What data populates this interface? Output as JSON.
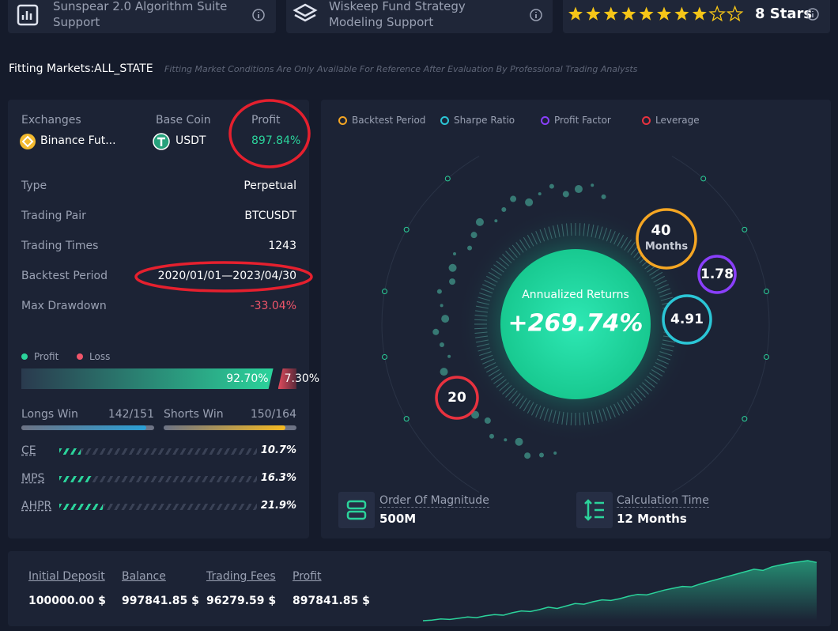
{
  "top_cards": [
    {
      "title": "Sunspear 2.0 Algorithm Suite Support"
    },
    {
      "title": "Wiskeep Fund Strategy Modeling Support"
    }
  ],
  "rating": {
    "stars": 8,
    "max_stars": 10,
    "label": "8 Stars"
  },
  "fitting_markets": {
    "label": "Fitting Markets:ALL_STATE",
    "note": "Fitting Market Conditions Are Only Available For Reference After Evaluation By Professional Trading Analysts"
  },
  "summary": {
    "exchanges": {
      "label": "Exchanges",
      "value": "Binance Fut..."
    },
    "base_coin": {
      "label": "Base Coin",
      "value": "USDT"
    },
    "profit": {
      "label": "Profit",
      "value": "897.84%"
    }
  },
  "details": [
    {
      "label": "Type",
      "value": "Perpetual"
    },
    {
      "label": "Trading Pair",
      "value": "BTCUSDT"
    },
    {
      "label": "Trading Times",
      "value": "1243"
    },
    {
      "label": "Backtest Period",
      "value": "2020/01/01—2023/04/30"
    },
    {
      "label": "Max Drawdown",
      "value": "-33.04%"
    }
  ],
  "win_loss": {
    "legend": [
      "Profit",
      "Loss"
    ],
    "profit": {
      "value": 92.7,
      "label": "92.70%"
    },
    "loss": {
      "value": 7.3,
      "label": "7.30%"
    }
  },
  "sides": [
    {
      "name": "Longs Win",
      "won": 142,
      "total": 151,
      "label": "142/151"
    },
    {
      "name": "Shorts Win",
      "won": 150,
      "total": 164,
      "label": "150/164"
    }
  ],
  "metrics": [
    {
      "name": "CE",
      "value": 10.7,
      "label": "10.7%"
    },
    {
      "name": "MPS",
      "value": 16.3,
      "label": "16.3%"
    },
    {
      "name": "AHPR",
      "value": 21.9,
      "label": "21.9%"
    }
  ],
  "overview": {
    "legend": [
      {
        "name": "Backtest Period",
        "color": "#f5a623"
      },
      {
        "name": "Sharpe Ratio",
        "color": "#2bc6d6"
      },
      {
        "name": "Profit Factor",
        "color": "#8a3ffc"
      },
      {
        "name": "Leverage",
        "color": "#e8323f"
      }
    ],
    "center": {
      "title": "Annualized Returns",
      "value": "+269.74%"
    },
    "bubbles": [
      {
        "value": "40",
        "unit": "Months",
        "color": "#f5a623"
      },
      {
        "value": "1.78",
        "color": "#8a3ffc"
      },
      {
        "value": "4.91",
        "color": "#2bc6d6"
      },
      {
        "value": "20",
        "color": "#e8323f"
      }
    ],
    "stats": [
      {
        "label": "Order Of Magnitude",
        "value": "500M"
      },
      {
        "label": "Calculation Time",
        "value": "12 Months"
      }
    ]
  },
  "balances": [
    {
      "label": "Initial Deposit",
      "value": "100000.00 $"
    },
    {
      "label": "Balance",
      "value": "997841.85 $"
    },
    {
      "label": "Trading Fees",
      "value": "96279.59 $"
    },
    {
      "label": "Profit",
      "value": "897841.85 $"
    }
  ],
  "equity_curve": [
    2,
    3,
    5,
    4,
    6,
    8,
    7,
    10,
    12,
    11,
    15,
    18,
    17,
    20,
    24,
    22,
    26,
    30,
    29,
    33,
    36,
    35,
    38,
    42,
    45,
    44,
    48,
    52,
    55,
    58,
    57,
    62,
    66,
    70,
    74,
    78,
    82,
    86,
    84,
    90,
    93,
    96,
    98,
    100,
    97
  ]
}
